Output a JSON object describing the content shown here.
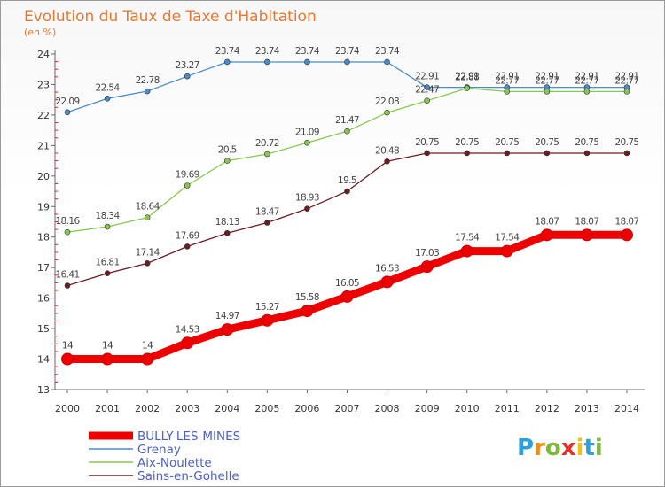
{
  "chart_data": {
    "type": "line",
    "title": "Evolution du Taux de Taxe d'Habitation",
    "subtitle": "(en %)",
    "x": [
      "2000",
      "2001",
      "2002",
      "2003",
      "2004",
      "2005",
      "2006",
      "2007",
      "2008",
      "2009",
      "2010",
      "2011",
      "2012",
      "2013",
      "2014"
    ],
    "ylim": [
      13,
      24
    ],
    "yticks": [
      "13",
      "14",
      "15",
      "16",
      "17",
      "18",
      "19",
      "20",
      "21",
      "22",
      "23",
      "24"
    ],
    "grid": false,
    "legend_position": "bottom-left",
    "series": [
      {
        "name": "BULLY-LES-MINES",
        "color": "#ee0000",
        "values": [
          14,
          14,
          14,
          14.53,
          14.97,
          15.27,
          15.58,
          16.05,
          16.53,
          17.03,
          17.54,
          17.54,
          18.07,
          18.07,
          18.07
        ],
        "labels": [
          "14",
          "14",
          "14",
          "14.53",
          "14.97",
          "15.27",
          "15.58",
          "16.05",
          "16.53",
          "17.03",
          "17.54",
          "17.54",
          "18.07",
          "18.07",
          "18.07"
        ]
      },
      {
        "name": "Grenay",
        "color": "#4a8cc8",
        "values": [
          22.09,
          22.54,
          22.78,
          23.27,
          23.74,
          23.74,
          23.74,
          23.74,
          23.74,
          22.91,
          22.91,
          22.91,
          22.91,
          22.91,
          22.91
        ],
        "labels": [
          "22.09",
          "22.54",
          "22.78",
          "23.27",
          "23.74",
          "23.74",
          "23.74",
          "23.74",
          "23.74",
          "22.91",
          "22.91",
          "22.91",
          "22.91",
          "22.91",
          "22.91"
        ]
      },
      {
        "name": "Aix-Noulette",
        "color": "#88c850",
        "values": [
          18.16,
          18.34,
          18.64,
          19.69,
          20.5,
          20.72,
          21.09,
          21.47,
          22.08,
          22.47,
          22.88,
          22.77,
          22.77,
          22.77,
          22.77
        ],
        "labels": [
          "18.16",
          "18.34",
          "18.64",
          "19.69",
          "20.5",
          "20.72",
          "21.09",
          "21.47",
          "22.08",
          "22.47",
          "22.88",
          "22.77",
          "22.77",
          "22.77",
          "22.77"
        ]
      },
      {
        "name": "Sains-en-Gohelle",
        "color": "#6b1e22",
        "values": [
          16.41,
          16.81,
          17.14,
          17.69,
          18.13,
          18.47,
          18.93,
          19.5,
          20.48,
          20.75,
          20.75,
          20.75,
          20.75,
          20.75,
          20.75
        ],
        "labels": [
          "16.41",
          "16.81",
          "17.14",
          "17.69",
          "18.13",
          "18.47",
          "18.93",
          "19.5",
          "20.48",
          "20.75",
          "20.75",
          "20.75",
          "20.75",
          "20.75",
          "20.75"
        ]
      }
    ]
  },
  "logo": {
    "letters": [
      "P",
      "r",
      "o",
      "x",
      "i",
      "t",
      "i"
    ],
    "colors": [
      "#2ea0d8",
      "#f08c1e",
      "#7cb83a",
      "#e8302a",
      "#f0c020",
      "#2ea0d8",
      "#7cb83a"
    ]
  }
}
